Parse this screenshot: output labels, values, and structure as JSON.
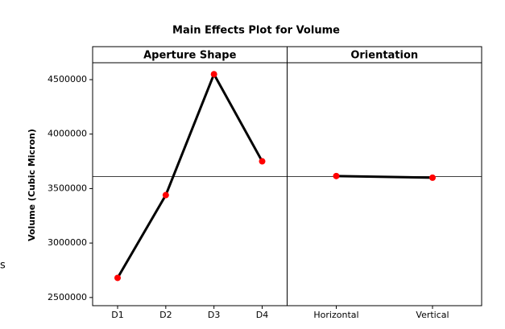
{
  "stray_text": "s",
  "chart_data": {
    "type": "line",
    "title": "Main Effects Plot for Volume",
    "y_label": "Volume (Cubic Micron)",
    "ylim": [
      2425000,
      4655000
    ],
    "yticks": [
      2500000,
      3000000,
      3500000,
      4000000,
      4500000
    ],
    "reference_line": 3610000,
    "line_color": "#000000",
    "marker_color": "#ff0000",
    "panels": [
      {
        "title": "Aperture Shape",
        "categories": [
          "D1",
          "D2",
          "D3",
          "D4"
        ],
        "values": [
          2680000,
          3440000,
          4550000,
          3750000
        ]
      },
      {
        "title": "Orientation",
        "categories": [
          "Horizontal",
          "Vertical"
        ],
        "values": [
          3615000,
          3600000
        ]
      }
    ]
  }
}
